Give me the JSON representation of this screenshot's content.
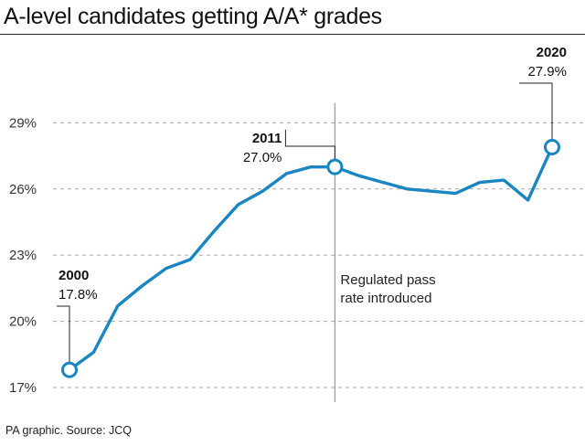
{
  "title": "A-level candidates getting A/A* grades",
  "source": "PA graphic. Source: JCQ",
  "chart_data": {
    "type": "line",
    "title": "A-level candidates getting A/A* grades",
    "x": [
      2000,
      2001,
      2002,
      2003,
      2004,
      2005,
      2006,
      2007,
      2008,
      2009,
      2010,
      2011,
      2012,
      2013,
      2014,
      2015,
      2016,
      2017,
      2018,
      2019,
      2020
    ],
    "series": [
      {
        "values": [
          17.8,
          18.6,
          20.7,
          21.6,
          22.4,
          22.8,
          24.1,
          25.3,
          25.9,
          26.7,
          27.0,
          27.0,
          26.6,
          26.3,
          26.0,
          25.9,
          25.8,
          26.3,
          26.4,
          25.5,
          27.9
        ],
        "color": "#1a86c1"
      }
    ],
    "y_ticks": [
      "17%",
      "20%",
      "23%",
      "26%",
      "29%"
    ],
    "ylim": [
      17,
      30
    ],
    "xlim": [
      2000,
      2020
    ],
    "grid": true,
    "annotations": [
      {
        "year": "2000",
        "value": "17.8%"
      },
      {
        "year": "2011",
        "value": "27.0%"
      },
      {
        "year": "2020",
        "value": "27.9%"
      }
    ],
    "note": [
      "Regulated pass",
      "rate introduced"
    ]
  }
}
